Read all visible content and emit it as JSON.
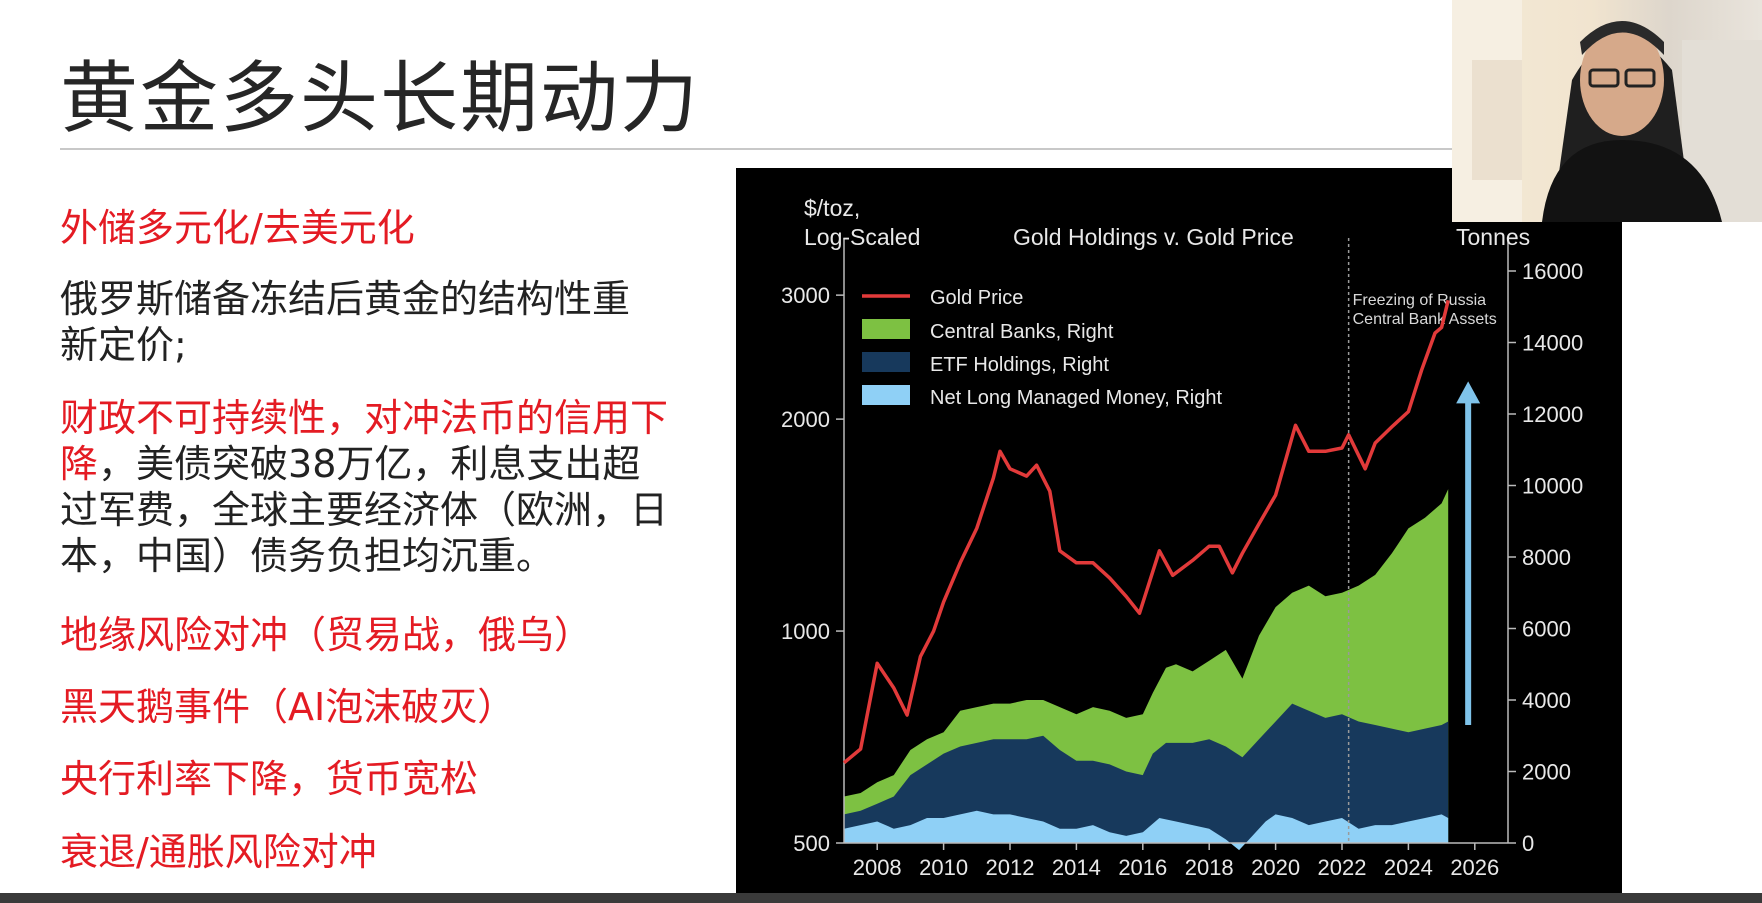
{
  "slide": {
    "title": "黄金多头长期动力",
    "bullets": [
      {
        "text": "外储多元化/去美元化",
        "color": "#e41b23"
      },
      {
        "text": "俄罗斯储备冻结后黄金的结构性重新定价;",
        "color": "#222222"
      },
      {
        "red_part": "财政不可持续性，对冲法币的信用下降",
        "dark_part": "，美债突破38万亿，利息支出超过军费，全球主要经济体（欧洲，日本，中国）债务负担均沉重。"
      },
      {
        "text": "地缘风险对冲（贸易战，俄乌）",
        "color": "#e41b23"
      },
      {
        "text": "黑天鹅事件（AI泡沫破灭）",
        "color": "#e41b23"
      },
      {
        "text": "央行利率下降，货币宽松",
        "color": "#e41b23"
      },
      {
        "text": "衰退/通胀风险对冲",
        "color": "#e41b23"
      }
    ]
  },
  "chart_data": {
    "type": "area",
    "title": "Gold Holdings v. Gold Price",
    "left_axis_label_line1": "$/toz,",
    "left_axis_label_line2": "Log-Scaled",
    "right_axis_label": "Tonnes",
    "left_scale": "log",
    "ylim_left": [
      500,
      3500
    ],
    "ylim_right": [
      0,
      16000
    ],
    "xlim": [
      2007,
      2027
    ],
    "left_ticks": [
      500,
      1000,
      2000,
      3000
    ],
    "right_ticks": [
      0,
      2000,
      4000,
      6000,
      8000,
      10000,
      12000,
      14000,
      16000
    ],
    "x_ticks": [
      2008,
      2010,
      2012,
      2014,
      2016,
      2018,
      2020,
      2022,
      2024,
      2026
    ],
    "legend_position": "top-left",
    "annotation_line1": "Freezing of Russia",
    "annotation_line2": "Central Bank Assets",
    "annotation_x": 2022.2,
    "series": [
      {
        "name": "Gold Price",
        "axis": "left",
        "color": "#e23a3a",
        "x": [
          2007.0,
          2007.5,
          2008.0,
          2008.5,
          2008.9,
          2009.3,
          2009.7,
          2010.0,
          2010.5,
          2011.0,
          2011.5,
          2011.7,
          2012.0,
          2012.5,
          2012.8,
          2013.2,
          2013.5,
          2014.0,
          2014.5,
          2015.0,
          2015.5,
          2015.9,
          2016.5,
          2016.9,
          2017.5,
          2018.0,
          2018.3,
          2018.7,
          2019.0,
          2019.5,
          2020.0,
          2020.6,
          2021.0,
          2021.5,
          2022.0,
          2022.2,
          2022.7,
          2023.0,
          2023.5,
          2024.0,
          2024.4,
          2024.8,
          2025.0,
          2025.2
        ],
        "y": [
          650,
          680,
          900,
          830,
          760,
          920,
          1000,
          1100,
          1250,
          1400,
          1650,
          1800,
          1700,
          1660,
          1720,
          1580,
          1300,
          1250,
          1250,
          1190,
          1120,
          1060,
          1300,
          1200,
          1260,
          1320,
          1320,
          1210,
          1290,
          1420,
          1560,
          1960,
          1800,
          1800,
          1820,
          1900,
          1700,
          1850,
          1950,
          2050,
          2350,
          2650,
          2700,
          2950
        ]
      },
      {
        "name": "Central Banks, Right",
        "axis": "right",
        "color": "#7dc142",
        "x": [
          2007.0,
          2007.5,
          2008.0,
          2008.5,
          2009.0,
          2009.5,
          2010.0,
          2010.5,
          2011.0,
          2011.5,
          2012.0,
          2012.5,
          2013.0,
          2013.5,
          2014.0,
          2014.5,
          2015.0,
          2015.5,
          2016.0,
          2016.3,
          2016.7,
          2017.0,
          2017.5,
          2018.0,
          2018.5,
          2019.0,
          2019.5,
          2020.0,
          2020.5,
          2021.0,
          2021.5,
          2022.0,
          2022.5,
          2023.0,
          2023.5,
          2024.0,
          2024.5,
          2025.0,
          2025.2
        ],
        "y": [
          1300,
          1400,
          1700,
          1900,
          2600,
          2900,
          3100,
          3700,
          3800,
          3900,
          3900,
          4000,
          4000,
          3800,
          3600,
          3800,
          3700,
          3500,
          3600,
          4200,
          4900,
          5000,
          4800,
          5100,
          5400,
          4600,
          5800,
          6600,
          7000,
          7200,
          6900,
          7000,
          7200,
          7500,
          8100,
          8800,
          9100,
          9500,
          9900
        ]
      },
      {
        "name": "ETF Holdings, Right",
        "axis": "right",
        "color": "#17395c",
        "x": [
          2007.0,
          2007.5,
          2008.0,
          2008.5,
          2009.0,
          2009.5,
          2010.0,
          2010.5,
          2011.0,
          2011.5,
          2012.0,
          2012.5,
          2013.0,
          2013.5,
          2014.0,
          2014.5,
          2015.0,
          2015.5,
          2016.0,
          2016.3,
          2016.7,
          2017.0,
          2017.5,
          2018.0,
          2018.5,
          2019.0,
          2019.5,
          2020.0,
          2020.5,
          2021.0,
          2021.5,
          2022.0,
          2022.5,
          2023.0,
          2023.5,
          2024.0,
          2024.5,
          2025.0,
          2025.2
        ],
        "y": [
          800,
          900,
          1100,
          1300,
          1900,
          2200,
          2500,
          2700,
          2800,
          2900,
          2900,
          2900,
          3000,
          2600,
          2300,
          2300,
          2200,
          2000,
          1900,
          2500,
          2800,
          2800,
          2800,
          2900,
          2700,
          2400,
          2900,
          3400,
          3900,
          3700,
          3500,
          3600,
          3400,
          3300,
          3200,
          3100,
          3200,
          3300,
          3400
        ]
      },
      {
        "name": "Net Long Managed Money, Right",
        "axis": "right",
        "color": "#8fd0f6",
        "x": [
          2007.0,
          2007.5,
          2008.0,
          2008.5,
          2009.0,
          2009.5,
          2010.0,
          2010.5,
          2011.0,
          2011.5,
          2012.0,
          2012.5,
          2013.0,
          2013.5,
          2014.0,
          2014.5,
          2015.0,
          2015.5,
          2016.0,
          2016.5,
          2017.0,
          2017.5,
          2018.0,
          2018.5,
          2018.9,
          2019.3,
          2019.7,
          2020.0,
          2020.5,
          2021.0,
          2021.5,
          2022.0,
          2022.5,
          2023.0,
          2023.5,
          2024.0,
          2024.5,
          2025.0,
          2025.2
        ],
        "y": [
          400,
          500,
          600,
          400,
          500,
          700,
          700,
          800,
          900,
          800,
          800,
          700,
          600,
          400,
          400,
          500,
          300,
          200,
          300,
          700,
          600,
          500,
          400,
          100,
          -200,
          200,
          600,
          800,
          700,
          500,
          600,
          700,
          400,
          500,
          500,
          600,
          700,
          800,
          700
        ]
      }
    ],
    "arrow": {
      "x": 2025.8,
      "y_from": 3300,
      "y_to": 12800,
      "color": "#7fc3ea"
    }
  }
}
